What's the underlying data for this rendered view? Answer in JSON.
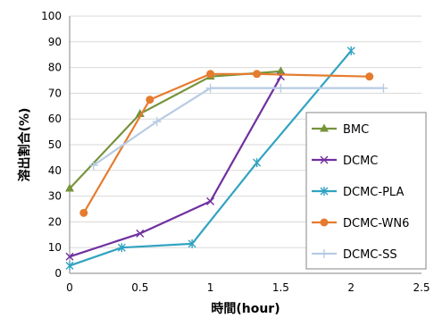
{
  "chart_data": {
    "type": "line",
    "xlabel": "時間(hour)",
    "ylabel": "溶出割合(%)",
    "xlim": [
      0,
      2.5
    ],
    "ylim": [
      0,
      100
    ],
    "xticks": [
      "0",
      "0.5",
      "1",
      "1.5",
      "2",
      "2.5"
    ],
    "yticks": [
      "0",
      "10",
      "20",
      "30",
      "40",
      "50",
      "60",
      "70",
      "80",
      "90",
      "100"
    ],
    "grid": "horizontal",
    "legend_position": "right",
    "series": [
      {
        "name": "BMC",
        "color": "#77933c",
        "marker": "triangle",
        "points": [
          [
            0,
            33
          ],
          [
            0.5,
            62
          ],
          [
            1.0,
            76.5
          ],
          [
            1.5,
            78.5
          ]
        ]
      },
      {
        "name": "DCMC",
        "color": "#7030a0",
        "marker": "x",
        "points": [
          [
            0,
            6.5
          ],
          [
            0.5,
            15.5
          ],
          [
            1.0,
            28
          ],
          [
            1.5,
            76.5
          ]
        ]
      },
      {
        "name": "DCMC-PLA",
        "color": "#31a3c1",
        "marker": "asterisk",
        "points": [
          [
            0,
            3
          ],
          [
            0.37,
            10
          ],
          [
            0.87,
            11.5
          ],
          [
            1.33,
            43
          ],
          [
            2.0,
            86.5
          ]
        ]
      },
      {
        "name": "DCMC-WN6",
        "color": "#e57b2f",
        "marker": "circle",
        "points": [
          [
            0.1,
            23.5
          ],
          [
            0.57,
            67.5
          ],
          [
            1.0,
            77.5
          ],
          [
            1.33,
            77.5
          ],
          [
            2.13,
            76.5
          ]
        ]
      },
      {
        "name": "DCMC-SS",
        "color": "#b7cbe3",
        "marker": "plus",
        "points": [
          [
            0.17,
            42
          ],
          [
            0.62,
            59
          ],
          [
            1.0,
            72
          ],
          [
            1.5,
            72
          ],
          [
            2.23,
            72
          ]
        ]
      }
    ]
  }
}
